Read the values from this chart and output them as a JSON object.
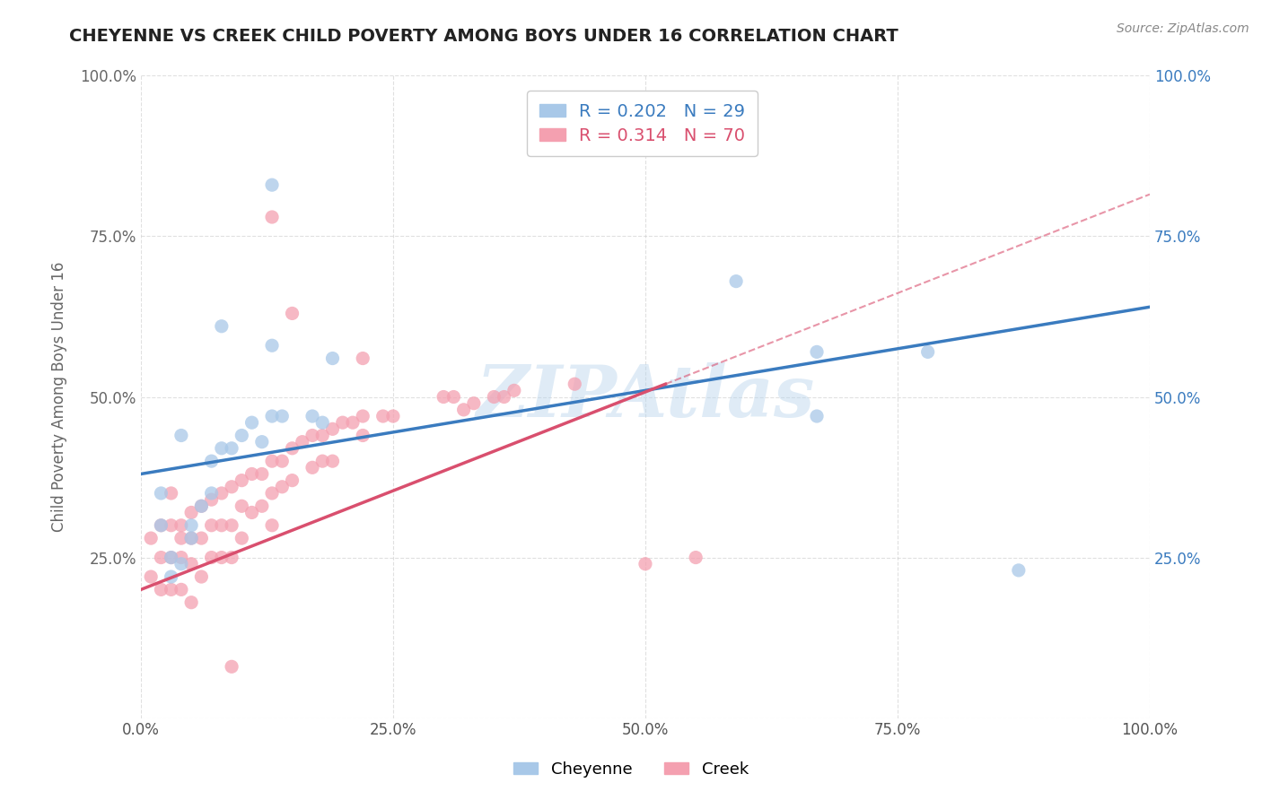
{
  "title": "CHEYENNE VS CREEK CHILD POVERTY AMONG BOYS UNDER 16 CORRELATION CHART",
  "source": "Source: ZipAtlas.com",
  "ylabel": "Child Poverty Among Boys Under 16",
  "watermark": "ZIPAtlas",
  "cheyenne_R": 0.202,
  "cheyenne_N": 29,
  "creek_R": 0.314,
  "creek_N": 70,
  "cheyenne_color": "#a8c8e8",
  "creek_color": "#f4a0b0",
  "cheyenne_line_color": "#3a7bbf",
  "creek_line_color": "#d94f6e",
  "background_color": "#ffffff",
  "grid_color": "#cccccc",
  "xlim": [
    0.0,
    1.0
  ],
  "ylim": [
    0.0,
    1.0
  ],
  "xticks": [
    0.0,
    0.25,
    0.5,
    0.75,
    1.0
  ],
  "yticks": [
    0.0,
    0.25,
    0.5,
    0.75,
    1.0
  ],
  "xtick_labels": [
    "0.0%",
    "25.0%",
    "50.0%",
    "75.0%",
    "100.0%"
  ],
  "ytick_labels": [
    "",
    "25.0%",
    "50.0%",
    "75.0%",
    "100.0%"
  ],
  "cheyenne_x": [
    0.13,
    0.13,
    0.19,
    0.12,
    0.08,
    0.04,
    0.02,
    0.02,
    0.03,
    0.03,
    0.04,
    0.05,
    0.05,
    0.06,
    0.07,
    0.07,
    0.08,
    0.09,
    0.1,
    0.11,
    0.13,
    0.14,
    0.17,
    0.18,
    0.59,
    0.67,
    0.67,
    0.78,
    0.87
  ],
  "cheyenne_y": [
    0.83,
    0.58,
    0.56,
    0.43,
    0.61,
    0.44,
    0.35,
    0.3,
    0.25,
    0.22,
    0.24,
    0.28,
    0.3,
    0.33,
    0.35,
    0.4,
    0.42,
    0.42,
    0.44,
    0.46,
    0.47,
    0.47,
    0.47,
    0.46,
    0.68,
    0.57,
    0.47,
    0.57,
    0.23
  ],
  "creek_x": [
    0.01,
    0.01,
    0.02,
    0.02,
    0.02,
    0.03,
    0.03,
    0.03,
    0.03,
    0.04,
    0.04,
    0.04,
    0.04,
    0.05,
    0.05,
    0.05,
    0.05,
    0.06,
    0.06,
    0.06,
    0.07,
    0.07,
    0.07,
    0.08,
    0.08,
    0.08,
    0.09,
    0.09,
    0.09,
    0.1,
    0.1,
    0.1,
    0.11,
    0.11,
    0.12,
    0.12,
    0.13,
    0.13,
    0.13,
    0.14,
    0.14,
    0.15,
    0.15,
    0.16,
    0.17,
    0.17,
    0.18,
    0.18,
    0.19,
    0.19,
    0.2,
    0.21,
    0.22,
    0.22,
    0.24,
    0.25,
    0.3,
    0.31,
    0.32,
    0.33,
    0.35,
    0.36,
    0.37,
    0.43,
    0.5,
    0.55,
    0.13,
    0.15,
    0.22,
    0.09
  ],
  "creek_y": [
    0.28,
    0.22,
    0.3,
    0.25,
    0.2,
    0.35,
    0.3,
    0.25,
    0.2,
    0.28,
    0.3,
    0.25,
    0.2,
    0.32,
    0.28,
    0.24,
    0.18,
    0.33,
    0.28,
    0.22,
    0.34,
    0.3,
    0.25,
    0.35,
    0.3,
    0.25,
    0.36,
    0.3,
    0.25,
    0.37,
    0.33,
    0.28,
    0.38,
    0.32,
    0.38,
    0.33,
    0.4,
    0.35,
    0.3,
    0.4,
    0.36,
    0.42,
    0.37,
    0.43,
    0.44,
    0.39,
    0.44,
    0.4,
    0.45,
    0.4,
    0.46,
    0.46,
    0.47,
    0.44,
    0.47,
    0.47,
    0.5,
    0.5,
    0.48,
    0.49,
    0.5,
    0.5,
    0.51,
    0.52,
    0.24,
    0.25,
    0.78,
    0.63,
    0.56,
    0.08
  ],
  "creek_line_x_end": 0.52,
  "cheyenne_line_start_y": 0.38,
  "cheyenne_line_end_y": 0.64,
  "creek_line_start_y": 0.2,
  "creek_line_end_y": 0.52
}
